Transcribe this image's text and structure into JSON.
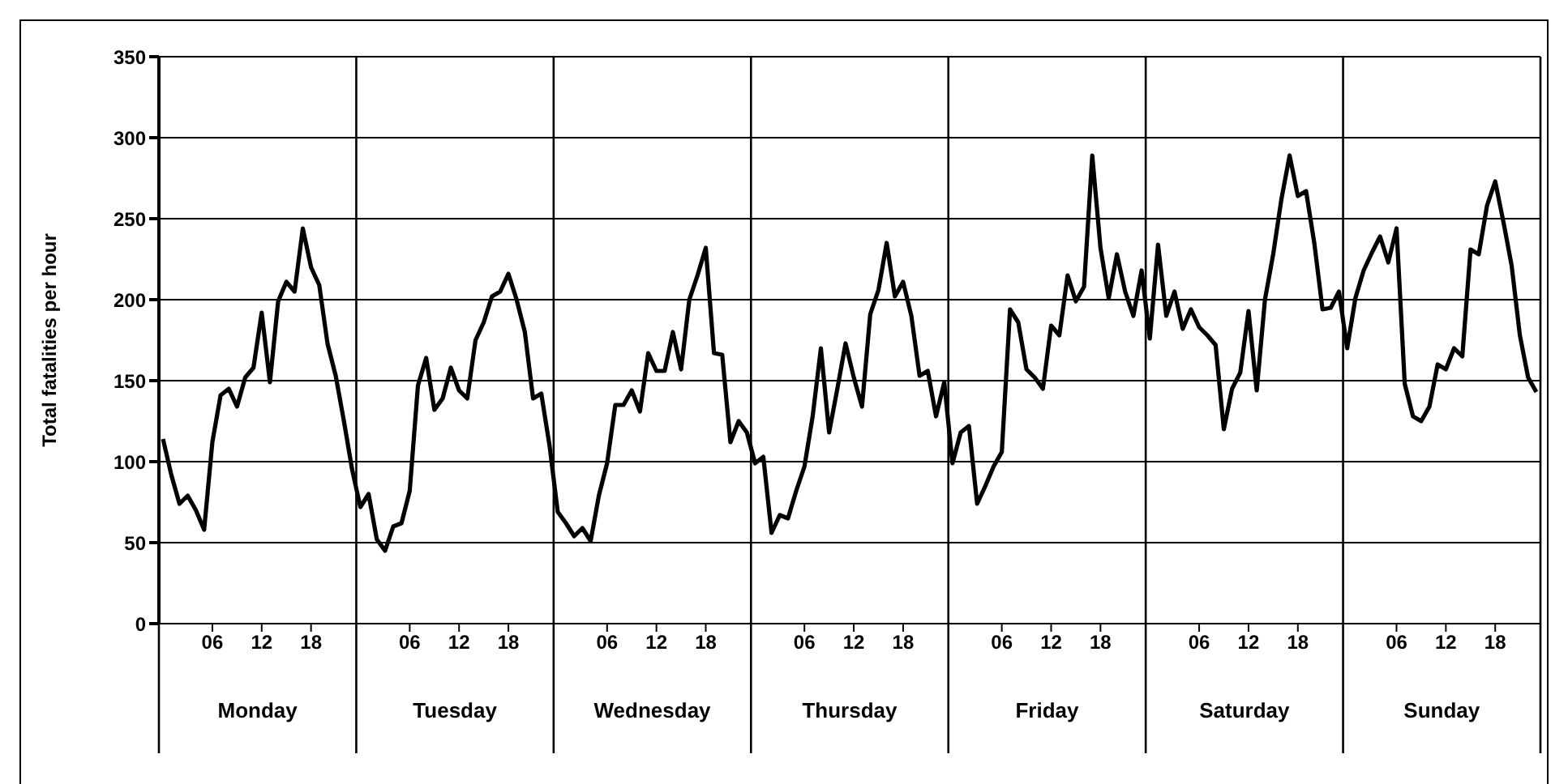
{
  "chart_data": {
    "type": "line",
    "ylabel": "Total fatalities per hour",
    "categories": [
      null,
      null,
      null,
      null,
      null,
      null,
      "06",
      null,
      null,
      null,
      null,
      null,
      "12",
      null,
      null,
      null,
      null,
      null,
      "18",
      null,
      null,
      null,
      null,
      null,
      null,
      null,
      null,
      null,
      null,
      null,
      "06",
      null,
      null,
      null,
      null,
      null,
      "12",
      null,
      null,
      null,
      null,
      null,
      "18",
      null,
      null,
      null,
      null,
      null,
      null,
      null,
      null,
      null,
      null,
      null,
      "06",
      null,
      null,
      null,
      null,
      null,
      "12",
      null,
      null,
      null,
      null,
      null,
      "18",
      null,
      null,
      null,
      null,
      null,
      null,
      null,
      null,
      null,
      null,
      null,
      "06",
      null,
      null,
      null,
      null,
      null,
      "12",
      null,
      null,
      null,
      null,
      null,
      "18",
      null,
      null,
      null,
      null,
      null,
      null,
      null,
      null,
      null,
      null,
      null,
      "06",
      null,
      null,
      null,
      null,
      null,
      "12",
      null,
      null,
      null,
      null,
      null,
      "18",
      null,
      null,
      null,
      null,
      null,
      null,
      null,
      null,
      null,
      null,
      null,
      "06",
      null,
      null,
      null,
      null,
      null,
      "12",
      null,
      null,
      null,
      null,
      null,
      "18",
      null,
      null,
      null,
      null,
      null,
      null,
      null,
      null,
      null,
      null,
      null,
      "06",
      null,
      null,
      null,
      null,
      null,
      "12",
      null,
      null,
      null,
      null,
      null,
      "18",
      null,
      null,
      null,
      null,
      null
    ],
    "series": [
      {
        "color": "#000000",
        "values": [
          114,
          92,
          74,
          79,
          70,
          58,
          112,
          141,
          145,
          134,
          152,
          158,
          192,
          149,
          199,
          211,
          205,
          244,
          220,
          209,
          173,
          153,
          125,
          95,
          72,
          80,
          52,
          45,
          60,
          62,
          82,
          147,
          164,
          132,
          139,
          158,
          144,
          139,
          175,
          186,
          202,
          205,
          216,
          200,
          180,
          139,
          142,
          110,
          69,
          62,
          54,
          59,
          51,
          79,
          99,
          135,
          135,
          144,
          131,
          167,
          156,
          156,
          180,
          157,
          200,
          215,
          232,
          167,
          166,
          112,
          125,
          118,
          99,
          103,
          56,
          67,
          65,
          82,
          97,
          128,
          170,
          118,
          145,
          173,
          152,
          134,
          191,
          206,
          235,
          202,
          211,
          190,
          153,
          156,
          128,
          149,
          99,
          118,
          122,
          74,
          85,
          97,
          106,
          194,
          186,
          157,
          152,
          145,
          184,
          178,
          215,
          199,
          208,
          289,
          232,
          201,
          228,
          205,
          190,
          218,
          176,
          234,
          190,
          205,
          182,
          194,
          183,
          178,
          172,
          120,
          145,
          155,
          193,
          144,
          200,
          228,
          262,
          289,
          264,
          267,
          235,
          194,
          195,
          205,
          170,
          201,
          218,
          229,
          239,
          223,
          244,
          148,
          128,
          125,
          134,
          160,
          157,
          170,
          165,
          231,
          228,
          258,
          273,
          248,
          221,
          178,
          152,
          143
        ]
      }
    ],
    "ylim": [
      0,
      350
    ],
    "yticks": [
      0,
      50,
      100,
      150,
      200,
      250,
      300,
      350
    ],
    "grid": "y",
    "marker": "none",
    "line_style": "solid",
    "annotations": [
      "Monday",
      "Tuesday",
      "Wednesday",
      "Thursday",
      "Friday",
      "Saturday",
      "Sunday"
    ]
  }
}
